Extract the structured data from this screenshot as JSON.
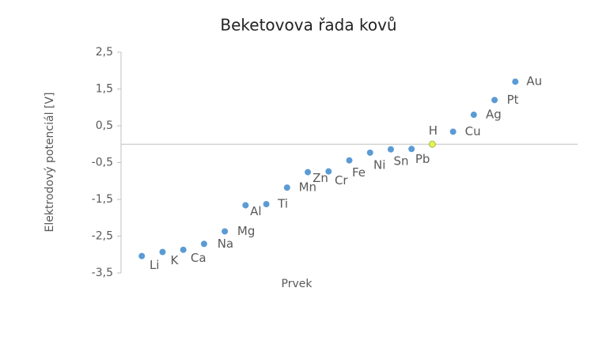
{
  "chart_data": {
    "type": "scatter",
    "title": "Beketovova řada kovů",
    "x_label": "Prvek",
    "y_label": "Elektrodový potenciál [V]",
    "categories": [
      "Li",
      "K",
      "Ca",
      "Na",
      "Mg",
      "Al",
      "Ti",
      "Mn",
      "Zn",
      "Cr",
      "Fe",
      "Ni",
      "Sn",
      "Pb",
      "H",
      "Cu",
      "Ag",
      "Pt",
      "Au"
    ],
    "values": [
      -3.04,
      -2.93,
      -2.87,
      -2.71,
      -2.37,
      -1.66,
      -1.63,
      -1.18,
      -0.76,
      -0.74,
      -0.44,
      -0.23,
      -0.14,
      -0.13,
      0,
      0.34,
      0.8,
      1.2,
      1.7
    ],
    "point_colors": [
      "#5b9bd5",
      "#5b9bd5",
      "#5b9bd5",
      "#5b9bd5",
      "#5b9bd5",
      "#5b9bd5",
      "#5b9bd5",
      "#5b9bd5",
      "#5b9bd5",
      "#5b9bd5",
      "#5b9bd5",
      "#5b9bd5",
      "#5b9bd5",
      "#5b9bd5",
      "#ecf04a",
      "#5b9bd5",
      "#5b9bd5",
      "#5b9bd5",
      "#5b9bd5"
    ],
    "ylim": [
      -3.5,
      2.5
    ],
    "yticks": [
      {
        "value": 2.5,
        "label": "2,5"
      },
      {
        "value": 1.5,
        "label": "1,5"
      },
      {
        "value": 0.5,
        "label": "0,5"
      },
      {
        "value": -0.5,
        "label": "-0,5"
      },
      {
        "value": -1.5,
        "label": "-1,5"
      },
      {
        "value": -2.5,
        "label": "-2,5"
      },
      {
        "value": -3.5,
        "label": "-3,5"
      }
    ],
    "grid": false
  }
}
